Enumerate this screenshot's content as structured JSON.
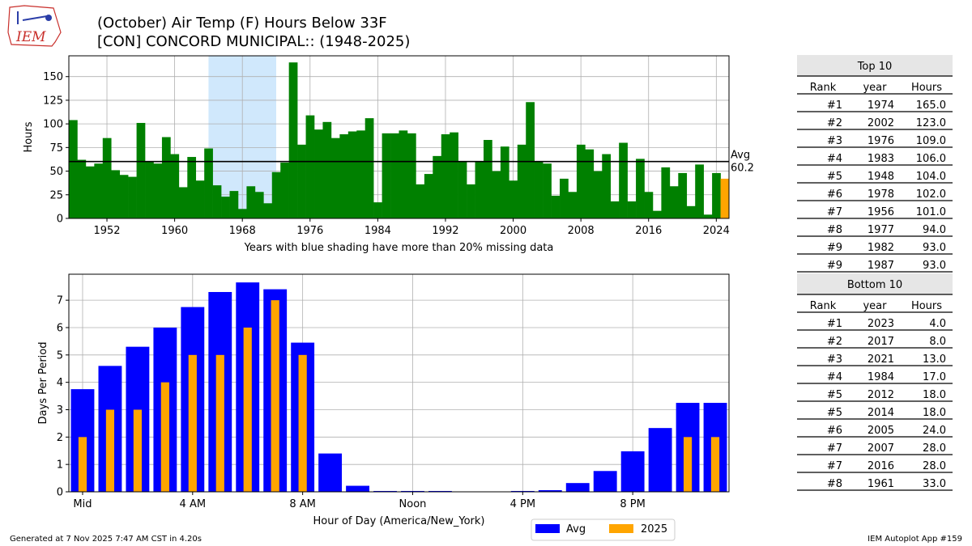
{
  "header": {
    "title_line1": "(October) Air Temp (F) Hours Below 33F",
    "title_line2": "[CON] CONCORD MUNICIPAL:: (1948-2025)",
    "logo_text": "IEM"
  },
  "chart_data": [
    {
      "type": "bar",
      "title": "",
      "ylabel": "Hours",
      "xlabel": "Years with blue shading have more than 20% missing data",
      "xlim": [
        1947.5,
        2025.5
      ],
      "ylim": [
        0,
        172
      ],
      "yticks": [
        0,
        25,
        50,
        75,
        100,
        125,
        150
      ],
      "xticks": [
        1952,
        1960,
        1968,
        1976,
        1984,
        1992,
        2000,
        2008,
        2016,
        2024
      ],
      "grid": true,
      "x": [
        1948,
        1949,
        1950,
        1951,
        1952,
        1953,
        1954,
        1955,
        1956,
        1957,
        1958,
        1959,
        1960,
        1961,
        1962,
        1963,
        1964,
        1965,
        1966,
        1967,
        1968,
        1969,
        1970,
        1971,
        1972,
        1973,
        1974,
        1975,
        1976,
        1977,
        1978,
        1979,
        1980,
        1981,
        1982,
        1983,
        1984,
        1985,
        1986,
        1987,
        1988,
        1989,
        1990,
        1991,
        1992,
        1993,
        1994,
        1995,
        1996,
        1997,
        1998,
        1999,
        2000,
        2001,
        2002,
        2003,
        2004,
        2005,
        2006,
        2007,
        2008,
        2009,
        2010,
        2011,
        2012,
        2013,
        2014,
        2015,
        2016,
        2017,
        2018,
        2019,
        2020,
        2021,
        2022,
        2023,
        2024,
        2025
      ],
      "values": [
        104,
        62,
        55,
        58,
        85,
        51,
        46,
        44,
        101,
        60,
        58,
        86,
        68,
        33,
        65,
        40,
        74,
        35,
        23,
        29,
        10,
        34,
        28,
        16,
        49,
        59,
        165,
        78,
        109,
        94,
        102,
        85,
        89,
        92,
        93,
        106,
        17,
        90,
        90,
        93,
        90,
        36,
        47,
        66,
        89,
        91,
        60,
        36,
        60,
        83,
        50,
        76,
        40,
        78,
        123,
        60,
        58,
        24,
        42,
        28,
        78,
        73,
        50,
        68,
        18,
        80,
        18,
        63,
        28,
        8,
        54,
        34,
        48,
        13,
        57,
        4,
        48,
        42
      ],
      "highlight_color": "#ffa500",
      "bar_color": "#008000",
      "missing_data_span": [
        1964,
        1972
      ],
      "missing_data_color": "#d0e8fc",
      "average": 60.2,
      "average_label": "Avg",
      "average_value_label": "60.2"
    },
    {
      "type": "bar",
      "title": "",
      "ylabel": "Days Per Period",
      "xlabel": "Hour of Day (America/New_York)",
      "ylim": [
        0,
        7.95
      ],
      "yticks": [
        0,
        1,
        2,
        3,
        4,
        5,
        6,
        7
      ],
      "xticks": [
        0,
        4,
        8,
        12,
        16,
        20
      ],
      "xtick_labels": [
        "Mid",
        "4 AM",
        "8 AM",
        "Noon",
        "4 PM",
        "8 PM"
      ],
      "grid": true,
      "x": [
        0,
        1,
        2,
        3,
        4,
        5,
        6,
        7,
        8,
        9,
        10,
        11,
        12,
        13,
        14,
        15,
        16,
        17,
        18,
        19,
        20,
        21,
        22,
        23
      ],
      "series": [
        {
          "name": "Avg",
          "color": "#0000ff",
          "values": [
            3.75,
            4.6,
            5.3,
            6.0,
            6.75,
            7.3,
            7.65,
            7.4,
            5.45,
            1.4,
            0.22,
            0.03,
            0.03,
            0.03,
            0.0,
            0.0,
            0.03,
            0.06,
            0.32,
            0.76,
            1.48,
            2.33,
            3.25,
            3.25
          ]
        },
        {
          "name": "2025",
          "color": "#ffa500",
          "values": [
            2,
            3,
            3,
            4,
            5,
            5,
            6,
            7,
            5,
            0,
            0,
            0,
            0,
            0,
            0,
            0,
            0,
            0,
            0,
            0,
            0,
            0,
            2,
            2
          ]
        }
      ],
      "legend_placement": "bottom-right"
    }
  ],
  "top10": {
    "title": "Top 10",
    "headers": [
      "Rank",
      "year",
      "Hours"
    ],
    "rows": [
      [
        "#1",
        "1974",
        "165.0"
      ],
      [
        "#2",
        "2002",
        "123.0"
      ],
      [
        "#3",
        "1976",
        "109.0"
      ],
      [
        "#4",
        "1983",
        "106.0"
      ],
      [
        "#5",
        "1948",
        "104.0"
      ],
      [
        "#6",
        "1978",
        "102.0"
      ],
      [
        "#7",
        "1956",
        "101.0"
      ],
      [
        "#8",
        "1977",
        "94.0"
      ],
      [
        "#9",
        "1982",
        "93.0"
      ],
      [
        "#9",
        "1987",
        "93.0"
      ]
    ]
  },
  "bottom10": {
    "title": "Bottom 10",
    "headers": [
      "Rank",
      "year",
      "Hours"
    ],
    "rows": [
      [
        "#1",
        "2023",
        "4.0"
      ],
      [
        "#2",
        "2017",
        "8.0"
      ],
      [
        "#3",
        "2021",
        "13.0"
      ],
      [
        "#4",
        "1984",
        "17.0"
      ],
      [
        "#5",
        "2012",
        "18.0"
      ],
      [
        "#5",
        "2014",
        "18.0"
      ],
      [
        "#6",
        "2005",
        "24.0"
      ],
      [
        "#7",
        "2007",
        "28.0"
      ],
      [
        "#7",
        "2016",
        "28.0"
      ],
      [
        "#8",
        "1961",
        "33.0"
      ]
    ]
  },
  "footer": {
    "generated": "Generated at 7 Nov 2025 7:47 AM CST in 4.20s",
    "app": "IEM Autoplot App #159"
  }
}
